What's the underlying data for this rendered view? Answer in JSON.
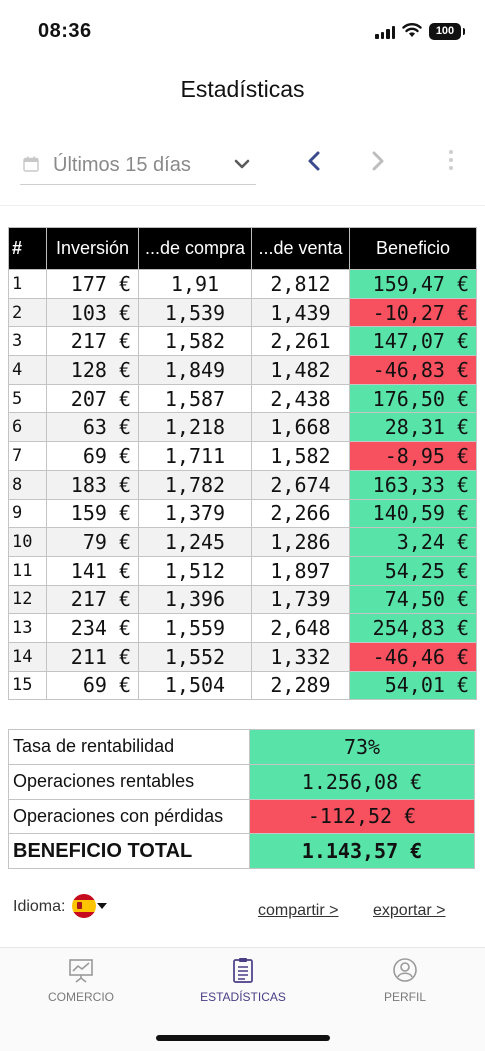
{
  "status_bar": {
    "time": "08:36",
    "battery": "100"
  },
  "header": {
    "title": "Estadísticas"
  },
  "toolbar": {
    "period": "Últimos 15 días"
  },
  "table": {
    "headers": [
      "#",
      "Inversión",
      "...de compra",
      "...de venta",
      "Beneficio"
    ],
    "rows": [
      {
        "n": "1",
        "inv": "177 €",
        "buy": "1,91",
        "sell": "2,812",
        "ben": "159,47 €",
        "status": "pos"
      },
      {
        "n": "2",
        "inv": "103 €",
        "buy": "1,539",
        "sell": "1,439",
        "ben": "-10,27 €",
        "status": "neg"
      },
      {
        "n": "3",
        "inv": "217 €",
        "buy": "1,582",
        "sell": "2,261",
        "ben": "147,07 €",
        "status": "pos"
      },
      {
        "n": "4",
        "inv": "128 €",
        "buy": "1,849",
        "sell": "1,482",
        "ben": "-46,83 €",
        "status": "neg"
      },
      {
        "n": "5",
        "inv": "207 €",
        "buy": "1,587",
        "sell": "2,438",
        "ben": "176,50 €",
        "status": "pos"
      },
      {
        "n": "6",
        "inv": "63 €",
        "buy": "1,218",
        "sell": "1,668",
        "ben": "28,31 €",
        "status": "pos"
      },
      {
        "n": "7",
        "inv": "69 €",
        "buy": "1,711",
        "sell": "1,582",
        "ben": "-8,95 €",
        "status": "neg"
      },
      {
        "n": "8",
        "inv": "183 €",
        "buy": "1,782",
        "sell": "2,674",
        "ben": "163,33 €",
        "status": "pos"
      },
      {
        "n": "9",
        "inv": "159 €",
        "buy": "1,379",
        "sell": "2,266",
        "ben": "140,59 €",
        "status": "pos"
      },
      {
        "n": "10",
        "inv": "79 €",
        "buy": "1,245",
        "sell": "1,286",
        "ben": "3,24 €",
        "status": "pos"
      },
      {
        "n": "11",
        "inv": "141 €",
        "buy": "1,512",
        "sell": "1,897",
        "ben": "54,25 €",
        "status": "pos"
      },
      {
        "n": "12",
        "inv": "217 €",
        "buy": "1,396",
        "sell": "1,739",
        "ben": "74,50 €",
        "status": "pos"
      },
      {
        "n": "13",
        "inv": "234 €",
        "buy": "1,559",
        "sell": "2,648",
        "ben": "254,83 €",
        "status": "pos"
      },
      {
        "n": "14",
        "inv": "211 €",
        "buy": "1,552",
        "sell": "1,332",
        "ben": "-46,46 €",
        "status": "neg"
      },
      {
        "n": "15",
        "inv": "69 €",
        "buy": "1,504",
        "sell": "2,289",
        "ben": "54,01 €",
        "status": "pos"
      }
    ]
  },
  "summary": {
    "rate_label": "Tasa de rentabilidad",
    "rate_value": "73%",
    "profitable_label": "Operaciones rentables",
    "profitable_value": "1.256,08 €",
    "loss_label": "Operaciones con pérdidas",
    "loss_value": "-112,52 €",
    "total_label": "BENEFICIO TOTAL",
    "total_value": "1.143,57 €"
  },
  "footer": {
    "language_label": "Idioma:",
    "share": "compartir >",
    "export": "exportar >"
  },
  "tabbar": {
    "commerce": "COMERCIO",
    "stats": "ESTADÍSTICAS",
    "profile": "PERFIL"
  },
  "colors": {
    "positive": "#58e3a9",
    "negative": "#f7505f",
    "accent": "#4a3d86",
    "nav": "#3b4a8c"
  }
}
